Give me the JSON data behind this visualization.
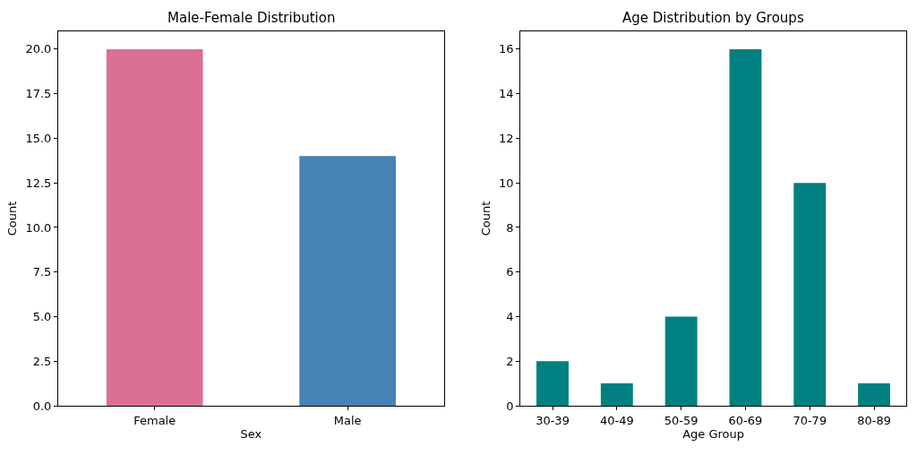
{
  "chart_data": [
    {
      "type": "bar",
      "title": "Male-Female Distribution",
      "xlabel": "Sex",
      "ylabel": "Count",
      "categories": [
        "Female",
        "Male"
      ],
      "values": [
        20,
        14
      ],
      "colors": [
        "#db7093",
        "#4682b4"
      ],
      "ylim": [
        0,
        21
      ],
      "yticks": [
        {
          "value": 0,
          "label": "0.0"
        },
        {
          "value": 2.5,
          "label": "2.5"
        },
        {
          "value": 5,
          "label": "5.0"
        },
        {
          "value": 7.5,
          "label": "7.5"
        },
        {
          "value": 10,
          "label": "10.0"
        },
        {
          "value": 12.5,
          "label": "12.5"
        },
        {
          "value": 15,
          "label": "15.0"
        },
        {
          "value": 17.5,
          "label": "17.5"
        },
        {
          "value": 20,
          "label": "20.0"
        }
      ]
    },
    {
      "type": "bar",
      "title": "Age Distribution by Groups",
      "xlabel": "Age Group",
      "ylabel": "Count",
      "categories": [
        "30-39",
        "40-49",
        "50-59",
        "60-69",
        "70-79",
        "80-89"
      ],
      "values": [
        2,
        1,
        4,
        16,
        10,
        1
      ],
      "color": "#008080",
      "ylim": [
        0,
        16.8
      ],
      "yticks": [
        0,
        2,
        4,
        6,
        8,
        10,
        12,
        14,
        16
      ]
    }
  ]
}
